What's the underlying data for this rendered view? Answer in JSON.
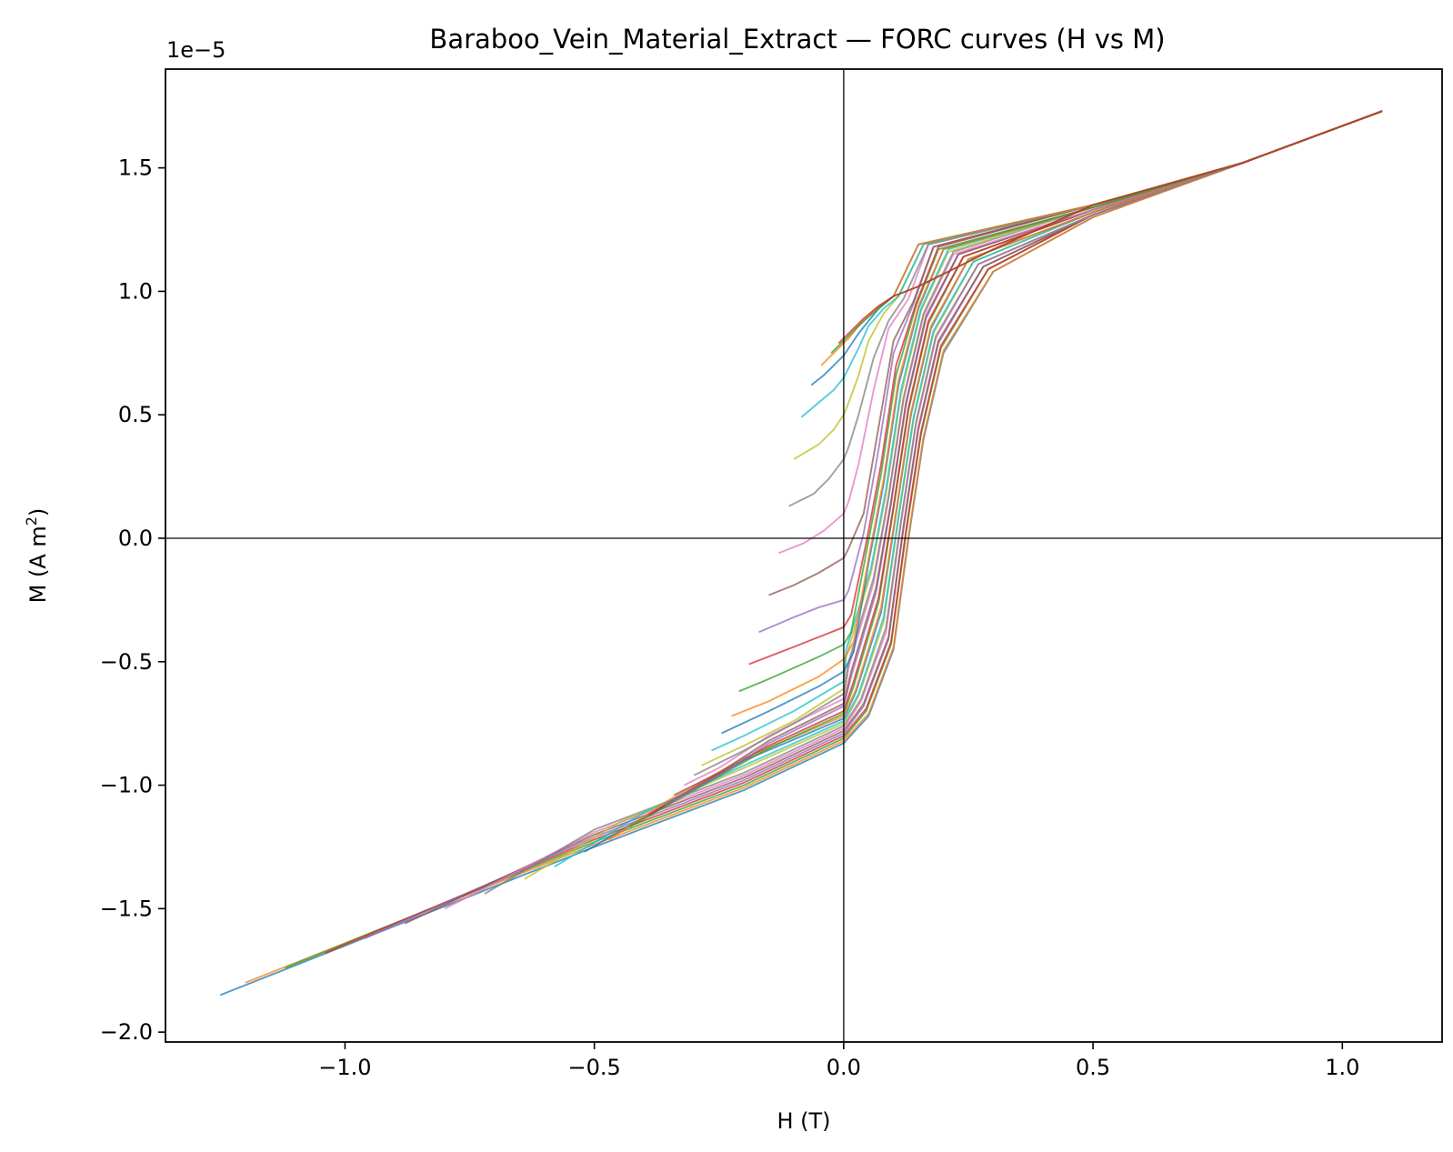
{
  "chart_data": {
    "type": "line",
    "title": "Baraboo_Vein_Material_Extract — FORC curves (H vs M)",
    "xlabel": "H (T)",
    "ylabel_main": "M (A m",
    "ylabel_sup": "2",
    "ylabel_close": ")",
    "y_offset_label": "1e−5",
    "y_scale": 1e-05,
    "xlim": [
      -1.36,
      1.2
    ],
    "ylim": [
      -2.04,
      1.9
    ],
    "x_ticks": [
      {
        "value": -1.0,
        "label": "−1.0"
      },
      {
        "value": -0.5,
        "label": "−0.5"
      },
      {
        "value": 0.0,
        "label": "0.0"
      },
      {
        "value": 0.5,
        "label": "0.5"
      },
      {
        "value": 1.0,
        "label": "1.0"
      }
    ],
    "y_ticks": [
      {
        "value": -2.0,
        "label": "−2.0"
      },
      {
        "value": -1.5,
        "label": "−1.5"
      },
      {
        "value": -1.0,
        "label": "−1.0"
      },
      {
        "value": -0.5,
        "label": "−0.5"
      },
      {
        "value": 0.0,
        "label": "0.0"
      },
      {
        "value": 0.5,
        "label": "0.5"
      },
      {
        "value": 1.0,
        "label": "1.0"
      },
      {
        "value": 1.5,
        "label": "1.5"
      }
    ],
    "zero_lines": {
      "x": 0,
      "y": 0
    },
    "grid": false,
    "legend": "none",
    "colors": [
      "#1f77b4",
      "#ff7f0e",
      "#2ca02c",
      "#d62728",
      "#9467bd",
      "#8c564b",
      "#e377c2",
      "#7f7f7f",
      "#bcbd22",
      "#17becf"
    ],
    "curves": [
      {
        "x": [
          -1.25,
          -0.5,
          -0.2,
          0.0,
          0.05,
          0.1,
          0.13,
          0.16,
          0.2,
          0.3,
          0.5,
          0.8,
          1.08
        ],
        "y": [
          -1.85,
          -1.25,
          -1.02,
          -0.83,
          -0.72,
          -0.45,
          0.0,
          0.4,
          0.75,
          1.08,
          1.3,
          1.52,
          1.73
        ]
      },
      {
        "x": [
          -1.2,
          -0.5,
          -0.2,
          0.0,
          0.05,
          0.1,
          0.13,
          0.16,
          0.2,
          0.3,
          0.5,
          0.8,
          1.08
        ],
        "y": [
          -1.8,
          -1.24,
          -1.01,
          -0.82,
          -0.71,
          -0.44,
          0.01,
          0.41,
          0.76,
          1.08,
          1.3,
          1.52,
          1.73
        ]
      },
      {
        "x": [
          -1.12,
          -0.5,
          -0.2,
          0.0,
          0.045,
          0.095,
          0.125,
          0.155,
          0.195,
          0.29,
          0.5,
          0.8,
          1.08
        ],
        "y": [
          -1.74,
          -1.23,
          -1.0,
          -0.81,
          -0.7,
          -0.43,
          0.02,
          0.42,
          0.77,
          1.09,
          1.31,
          1.52,
          1.73
        ]
      },
      {
        "x": [
          -1.04,
          -0.5,
          -0.2,
          0.0,
          0.045,
          0.095,
          0.125,
          0.155,
          0.195,
          0.29,
          0.5,
          0.8,
          1.08
        ],
        "y": [
          -1.68,
          -1.22,
          -0.99,
          -0.8,
          -0.69,
          -0.42,
          0.03,
          0.43,
          0.78,
          1.09,
          1.31,
          1.52,
          1.73
        ]
      },
      {
        "x": [
          -0.96,
          -0.5,
          -0.2,
          0.0,
          0.04,
          0.09,
          0.12,
          0.15,
          0.19,
          0.28,
          0.5,
          0.8,
          1.08
        ],
        "y": [
          -1.62,
          -1.21,
          -0.98,
          -0.79,
          -0.68,
          -0.41,
          0.04,
          0.44,
          0.79,
          1.1,
          1.31,
          1.52,
          1.73
        ]
      },
      {
        "x": [
          -0.88,
          -0.5,
          -0.2,
          0.0,
          0.04,
          0.09,
          0.12,
          0.15,
          0.19,
          0.28,
          0.5,
          0.8,
          1.08
        ],
        "y": [
          -1.56,
          -1.2,
          -0.97,
          -0.78,
          -0.67,
          -0.4,
          0.05,
          0.45,
          0.8,
          1.1,
          1.31,
          1.52,
          1.73
        ]
      },
      {
        "x": [
          -0.8,
          -0.5,
          -0.2,
          0.0,
          0.035,
          0.085,
          0.115,
          0.145,
          0.185,
          0.27,
          0.5,
          0.8,
          1.08
        ],
        "y": [
          -1.5,
          -1.19,
          -0.96,
          -0.77,
          -0.66,
          -0.38,
          0.06,
          0.46,
          0.81,
          1.11,
          1.31,
          1.52,
          1.73
        ]
      },
      {
        "x": [
          -0.72,
          -0.5,
          -0.2,
          0.0,
          0.035,
          0.085,
          0.115,
          0.145,
          0.185,
          0.27,
          0.5,
          0.8,
          1.08
        ],
        "y": [
          -1.44,
          -1.18,
          -0.95,
          -0.76,
          -0.65,
          -0.36,
          0.07,
          0.47,
          0.82,
          1.11,
          1.31,
          1.52,
          1.73
        ]
      },
      {
        "x": [
          -0.64,
          -0.45,
          -0.2,
          0.0,
          0.03,
          0.08,
          0.11,
          0.14,
          0.18,
          0.26,
          0.5,
          0.8,
          1.08
        ],
        "y": [
          -1.38,
          -1.15,
          -0.93,
          -0.75,
          -0.64,
          -0.34,
          0.08,
          0.48,
          0.83,
          1.12,
          1.32,
          1.52,
          1.73
        ]
      },
      {
        "x": [
          -0.58,
          -0.4,
          -0.2,
          0.0,
          0.03,
          0.08,
          0.11,
          0.14,
          0.18,
          0.26,
          0.5,
          0.8,
          1.08
        ],
        "y": [
          -1.33,
          -1.11,
          -0.92,
          -0.74,
          -0.63,
          -0.32,
          0.09,
          0.49,
          0.84,
          1.12,
          1.32,
          1.52,
          1.73
        ]
      },
      {
        "x": [
          -0.52,
          -0.35,
          -0.2,
          0.0,
          0.025,
          0.075,
          0.105,
          0.135,
          0.175,
          0.25,
          0.5,
          0.8,
          1.08
        ],
        "y": [
          -1.27,
          -1.07,
          -0.9,
          -0.73,
          -0.62,
          -0.3,
          0.1,
          0.5,
          0.85,
          1.13,
          1.32,
          1.52,
          1.73
        ]
      },
      {
        "x": [
          -0.47,
          -0.35,
          -0.2,
          0.0,
          0.025,
          0.075,
          0.105,
          0.135,
          0.175,
          0.25,
          0.5,
          0.8,
          1.08
        ],
        "y": [
          -1.22,
          -1.06,
          -0.89,
          -0.72,
          -0.61,
          -0.28,
          0.11,
          0.51,
          0.86,
          1.13,
          1.32,
          1.52,
          1.73
        ]
      },
      {
        "x": [
          -0.43,
          -0.3,
          -0.15,
          0.0,
          0.02,
          0.07,
          0.1,
          0.13,
          0.17,
          0.24,
          0.5,
          0.8,
          1.08
        ],
        "y": [
          -1.17,
          -1.02,
          -0.85,
          -0.71,
          -0.6,
          -0.26,
          0.12,
          0.52,
          0.87,
          1.14,
          1.33,
          1.52,
          1.73
        ]
      },
      {
        "x": [
          -0.39,
          -0.3,
          -0.15,
          0.0,
          0.02,
          0.07,
          0.1,
          0.13,
          0.17,
          0.24,
          0.5,
          0.8,
          1.08
        ],
        "y": [
          -1.12,
          -1.01,
          -0.84,
          -0.7,
          -0.58,
          -0.24,
          0.13,
          0.53,
          0.88,
          1.14,
          1.33,
          1.52,
          1.73
        ]
      },
      {
        "x": [
          -0.36,
          -0.25,
          -0.15,
          0.0,
          0.015,
          0.065,
          0.095,
          0.125,
          0.165,
          0.23,
          0.5,
          0.8,
          1.08
        ],
        "y": [
          -1.08,
          -0.96,
          -0.83,
          -0.68,
          -0.56,
          -0.22,
          0.14,
          0.54,
          0.89,
          1.15,
          1.33,
          1.52,
          1.73
        ]
      },
      {
        "x": [
          -0.34,
          -0.25,
          -0.15,
          0.0,
          0.015,
          0.065,
          0.095,
          0.125,
          0.165,
          0.23,
          0.5,
          0.8,
          1.08
        ],
        "y": [
          -1.04,
          -0.95,
          -0.82,
          -0.67,
          -0.54,
          -0.2,
          0.15,
          0.55,
          0.9,
          1.15,
          1.33,
          1.52,
          1.73
        ]
      },
      {
        "x": [
          -0.32,
          -0.25,
          -0.15,
          0.0,
          0.01,
          0.06,
          0.09,
          0.12,
          0.16,
          0.22,
          0.5,
          0.8,
          1.08
        ],
        "y": [
          -1.0,
          -0.93,
          -0.8,
          -0.65,
          -0.52,
          -0.18,
          0.16,
          0.56,
          0.9,
          1.15,
          1.33,
          1.52,
          1.73
        ]
      },
      {
        "x": [
          -0.3,
          -0.2,
          -0.1,
          0.0,
          0.01,
          0.06,
          0.09,
          0.12,
          0.16,
          0.22,
          0.5,
          0.8,
          1.08
        ],
        "y": [
          -0.96,
          -0.86,
          -0.75,
          -0.63,
          -0.5,
          -0.16,
          0.17,
          0.57,
          0.91,
          1.16,
          1.34,
          1.52,
          1.73
        ]
      },
      {
        "x": [
          -0.285,
          -0.2,
          -0.1,
          0.0,
          0.005,
          0.055,
          0.085,
          0.115,
          0.155,
          0.21,
          0.5,
          0.8,
          1.08
        ],
        "y": [
          -0.92,
          -0.84,
          -0.74,
          -0.61,
          -0.48,
          -0.14,
          0.18,
          0.58,
          0.92,
          1.16,
          1.34,
          1.52,
          1.73
        ]
      },
      {
        "x": [
          -0.265,
          -0.2,
          -0.1,
          0.0,
          0.005,
          0.055,
          0.085,
          0.115,
          0.155,
          0.21,
          0.5,
          0.8,
          1.08
        ],
        "y": [
          -0.86,
          -0.8,
          -0.7,
          -0.58,
          -0.45,
          -0.12,
          0.2,
          0.6,
          0.93,
          1.17,
          1.34,
          1.52,
          1.73
        ]
      },
      {
        "x": [
          -0.245,
          -0.15,
          -0.05,
          0.0,
          0.02,
          0.05,
          0.08,
          0.11,
          0.15,
          0.2,
          0.5,
          0.8,
          1.08
        ],
        "y": [
          -0.79,
          -0.7,
          -0.6,
          -0.54,
          -0.46,
          -0.1,
          0.22,
          0.62,
          0.93,
          1.17,
          1.34,
          1.52,
          1.73
        ]
      },
      {
        "x": [
          -0.225,
          -0.15,
          -0.05,
          0.0,
          0.02,
          0.05,
          0.08,
          0.11,
          0.15,
          0.2,
          0.5,
          0.8,
          1.08
        ],
        "y": [
          -0.72,
          -0.66,
          -0.56,
          -0.49,
          -0.42,
          -0.08,
          0.24,
          0.64,
          0.94,
          1.17,
          1.34,
          1.52,
          1.73
        ]
      },
      {
        "x": [
          -0.21,
          -0.15,
          -0.05,
          0.0,
          0.015,
          0.045,
          0.075,
          0.105,
          0.145,
          0.19,
          0.5,
          0.8,
          1.08
        ],
        "y": [
          -0.62,
          -0.57,
          -0.48,
          -0.43,
          -0.38,
          -0.06,
          0.26,
          0.66,
          0.94,
          1.17,
          1.34,
          1.52,
          1.73
        ]
      },
      {
        "x": [
          -0.19,
          -0.1,
          -0.05,
          0.0,
          0.015,
          0.045,
          0.075,
          0.105,
          0.145,
          0.19,
          0.5,
          0.8,
          1.08
        ],
        "y": [
          -0.51,
          -0.44,
          -0.4,
          -0.36,
          -0.31,
          -0.02,
          0.3,
          0.7,
          0.95,
          1.18,
          1.35,
          1.52,
          1.73
        ]
      },
      {
        "x": [
          -0.17,
          -0.1,
          -0.05,
          0.0,
          0.01,
          0.04,
          0.07,
          0.1,
          0.14,
          0.18,
          0.5,
          0.8,
          1.08
        ],
        "y": [
          -0.38,
          -0.32,
          -0.28,
          -0.25,
          -0.21,
          0.02,
          0.36,
          0.75,
          0.95,
          1.18,
          1.35,
          1.52,
          1.73
        ]
      },
      {
        "x": [
          -0.15,
          -0.1,
          -0.05,
          0.0,
          0.01,
          0.04,
          0.07,
          0.1,
          0.14,
          0.18,
          0.5,
          0.8,
          1.08
        ],
        "y": [
          -0.23,
          -0.19,
          -0.14,
          -0.08,
          -0.04,
          0.1,
          0.45,
          0.8,
          0.96,
          1.18,
          1.35,
          1.52,
          1.73
        ]
      },
      {
        "x": [
          -0.13,
          -0.08,
          -0.04,
          0.0,
          0.01,
          0.03,
          0.06,
          0.09,
          0.13,
          0.17,
          0.5,
          0.8,
          1.08
        ],
        "y": [
          -0.06,
          -0.02,
          0.03,
          0.1,
          0.15,
          0.3,
          0.6,
          0.85,
          0.97,
          1.19,
          1.35,
          1.52,
          1.73
        ]
      },
      {
        "x": [
          -0.11,
          -0.06,
          -0.03,
          0.0,
          0.01,
          0.03,
          0.06,
          0.09,
          0.12,
          0.17,
          0.5,
          0.8,
          1.08
        ],
        "y": [
          0.13,
          0.18,
          0.24,
          0.32,
          0.37,
          0.5,
          0.73,
          0.88,
          0.97,
          1.19,
          1.35,
          1.52,
          1.73
        ]
      },
      {
        "x": [
          -0.1,
          -0.05,
          -0.02,
          0.0,
          0.01,
          0.03,
          0.05,
          0.08,
          0.11,
          0.16,
          0.5,
          0.8,
          1.08
        ],
        "y": [
          0.32,
          0.38,
          0.44,
          0.5,
          0.55,
          0.66,
          0.8,
          0.91,
          0.98,
          1.19,
          1.35,
          1.52,
          1.73
        ]
      },
      {
        "x": [
          -0.085,
          -0.05,
          -0.02,
          0.0,
          0.01,
          0.03,
          0.05,
          0.08,
          0.11,
          0.16,
          0.5,
          0.8,
          1.08
        ],
        "y": [
          0.49,
          0.55,
          0.6,
          0.65,
          0.69,
          0.77,
          0.86,
          0.93,
          0.98,
          1.19,
          1.35,
          1.52,
          1.73
        ]
      },
      {
        "x": [
          -0.065,
          -0.04,
          -0.02,
          0.0,
          0.01,
          0.03,
          0.05,
          0.07,
          0.1,
          0.15,
          0.5,
          0.8,
          1.08
        ],
        "y": [
          0.62,
          0.66,
          0.7,
          0.74,
          0.77,
          0.83,
          0.88,
          0.93,
          0.98,
          1.19,
          1.35,
          1.52,
          1.73
        ]
      },
      {
        "x": [
          -0.045,
          -0.03,
          -0.01,
          0.0,
          0.01,
          0.03,
          0.05,
          0.07,
          0.1,
          0.15,
          0.5,
          0.8,
          1.08
        ],
        "y": [
          0.7,
          0.73,
          0.77,
          0.79,
          0.81,
          0.86,
          0.9,
          0.94,
          0.98,
          1.19,
          1.35,
          1.52,
          1.73
        ]
      },
      {
        "x": [
          -0.025,
          -0.01,
          0.0,
          0.02,
          0.04,
          0.07,
          0.1,
          0.15,
          0.3,
          0.5,
          0.8,
          1.08
        ],
        "y": [
          0.75,
          0.78,
          0.8,
          0.84,
          0.88,
          0.93,
          0.98,
          1.02,
          1.17,
          1.35,
          1.52,
          1.73
        ]
      },
      {
        "x": [
          -0.01,
          0.0,
          0.02,
          0.04,
          0.07,
          0.1,
          0.15,
          0.3,
          0.5,
          0.8,
          1.08
        ],
        "y": [
          0.79,
          0.81,
          0.85,
          0.89,
          0.94,
          0.98,
          1.02,
          1.17,
          1.35,
          1.52,
          1.73
        ]
      }
    ]
  }
}
